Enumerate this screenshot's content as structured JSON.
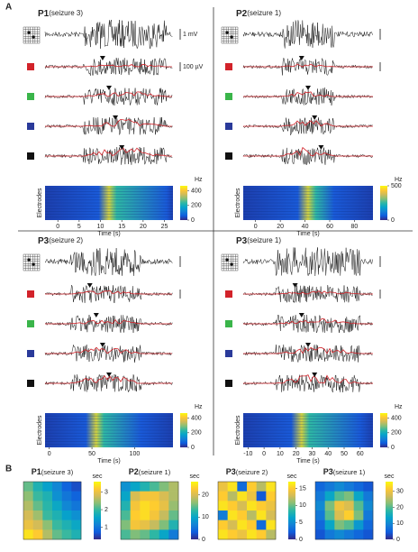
{
  "panel_a": {
    "label": "A",
    "subpanels": [
      {
        "patient": "P1",
        "seizure": "(seizure 3)",
        "scale_top": "1 mV",
        "scale_channel": "100 µV",
        "colorbar_unit": "Hz",
        "ylabel": "Electrodes",
        "xlabel": "Time (s)",
        "xlim": [
          -3,
          27
        ],
        "xticks": [
          0,
          5,
          10,
          15,
          20,
          25
        ],
        "clim": [
          0,
          470
        ],
        "cticks": [
          0,
          200,
          400
        ]
      },
      {
        "patient": "P2",
        "seizure": "(seizure 1)",
        "colorbar_unit": "Hz",
        "ylabel": "Electrodes",
        "xlabel": "Time (s)",
        "xlim": [
          -10,
          95
        ],
        "xticks": [
          0,
          20,
          40,
          60,
          80
        ],
        "clim": [
          0,
          500
        ],
        "cticks": [
          0,
          500
        ]
      },
      {
        "patient": "P3",
        "seizure": "(seizure 2)",
        "colorbar_unit": "Hz",
        "ylabel": "Electrodes",
        "xlabel": "Time (s)",
        "xlim": [
          -5,
          145
        ],
        "xticks": [
          0,
          50,
          100
        ],
        "clim": [
          0,
          470
        ],
        "cticks": [
          0,
          200,
          400
        ]
      },
      {
        "patient": "P3",
        "seizure": "(seizure 1)",
        "colorbar_unit": "Hz",
        "ylabel": "Electrodes",
        "xlabel": "Time (s)",
        "xlim": [
          -13,
          68
        ],
        "xticks": [
          -10,
          0,
          10,
          20,
          30,
          40,
          50,
          60
        ],
        "clim": [
          0,
          470
        ],
        "cticks": [
          0,
          200,
          400
        ]
      }
    ]
  },
  "panel_b": {
    "label": "B",
    "maps": [
      {
        "patient": "P1",
        "seizure": "(seizure 3)",
        "unit": "sec",
        "clim": [
          0.3,
          3.6
        ],
        "cticks": [
          1,
          2,
          3
        ],
        "grid": [
          [
            2.2,
            1.8,
            1.5,
            1.2,
            0.8,
            0.6
          ],
          [
            2.4,
            2.0,
            1.8,
            1.3,
            1.0,
            0.8
          ],
          [
            2.6,
            2.2,
            1.9,
            1.6,
            1.2,
            1.0
          ],
          [
            2.8,
            2.5,
            2.0,
            1.8,
            1.5,
            1.3
          ],
          [
            3.0,
            2.8,
            2.4,
            2.0,
            1.8,
            1.6
          ],
          [
            3.4,
            3.2,
            2.6,
            2.2,
            2.0,
            1.8
          ]
        ]
      },
      {
        "patient": "P2",
        "seizure": "(seizure 1)",
        "unit": "sec",
        "clim": [
          0,
          26
        ],
        "cticks": [
          0,
          10,
          20
        ],
        "grid": [
          [
            8,
            10,
            12,
            14,
            16,
            18
          ],
          [
            10,
            20,
            22,
            22,
            20,
            18
          ],
          [
            12,
            22,
            24,
            23,
            21,
            17
          ],
          [
            14,
            23,
            24,
            22,
            19,
            15
          ],
          [
            16,
            22,
            21,
            19,
            16,
            12
          ],
          [
            14,
            16,
            15,
            13,
            10,
            6
          ]
        ]
      },
      {
        "patient": "P3",
        "seizure": "(seizure 2)",
        "unit": "sec",
        "clim": [
          0,
          17
        ],
        "cticks": [
          0,
          5,
          10,
          15
        ],
        "grid": [
          [
            14,
            16,
            3,
            15,
            12,
            16
          ],
          [
            15,
            12,
            16,
            14,
            2,
            15
          ],
          [
            16,
            15,
            13,
            16,
            15,
            14
          ],
          [
            4,
            16,
            15,
            12,
            16,
            13
          ],
          [
            15,
            13,
            16,
            15,
            3,
            16
          ],
          [
            16,
            15,
            14,
            16,
            15,
            12
          ]
        ]
      },
      {
        "patient": "P3",
        "seizure": "(seizure 1)",
        "unit": "sec",
        "clim": [
          0,
          36
        ],
        "cticks": [
          0,
          10,
          20,
          30
        ],
        "grid": [
          [
            6,
            8,
            10,
            8,
            6,
            4
          ],
          [
            8,
            14,
            20,
            22,
            14,
            8
          ],
          [
            10,
            22,
            30,
            28,
            20,
            10
          ],
          [
            8,
            20,
            28,
            32,
            22,
            8
          ],
          [
            6,
            14,
            22,
            20,
            12,
            6
          ],
          [
            4,
            8,
            10,
            8,
            6,
            4
          ]
        ]
      }
    ]
  }
}
